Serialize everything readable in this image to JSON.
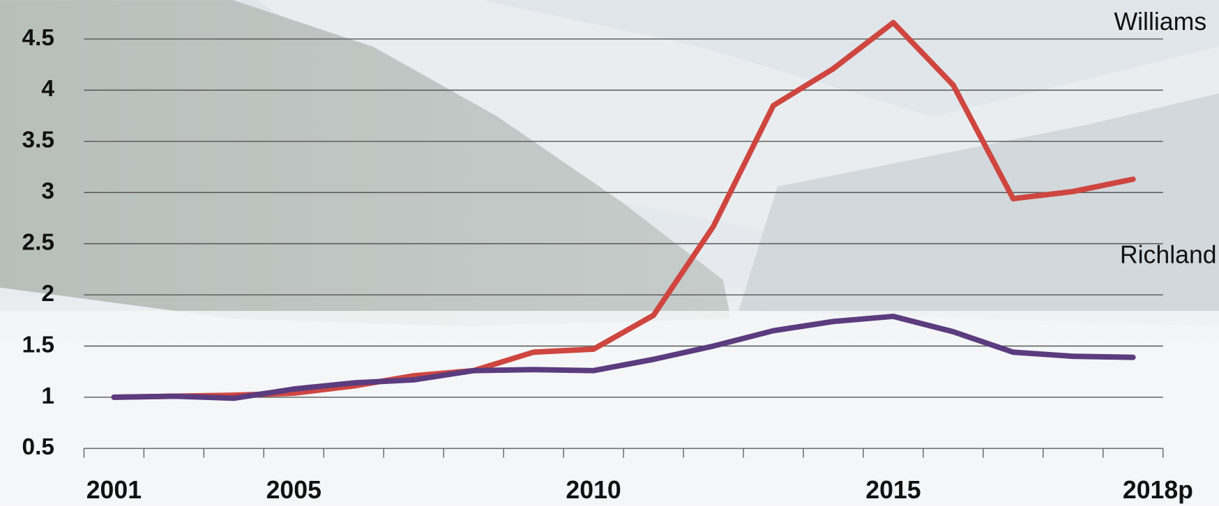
{
  "chart_data": {
    "type": "line",
    "categories": [
      "2001",
      null,
      null,
      "2005",
      null,
      null,
      null,
      null,
      "2010",
      null,
      null,
      null,
      null,
      "2015",
      null,
      null,
      null,
      "2018p"
    ],
    "series": [
      {
        "name": "Williams",
        "color": "#cf4640",
        "values": [
          1.0,
          1.01,
          1.02,
          1.04,
          1.11,
          1.21,
          1.26,
          1.44,
          1.47,
          1.8,
          2.67,
          3.85,
          4.21,
          4.66,
          4.05,
          2.94,
          3.01,
          3.13
        ]
      },
      {
        "name": "Richland",
        "color": "#5b3c7f",
        "values": [
          1.0,
          1.01,
          0.99,
          1.08,
          1.14,
          1.17,
          1.26,
          1.27,
          1.26,
          1.37,
          1.5,
          1.65,
          1.74,
          1.79,
          1.64,
          1.44,
          1.4,
          1.39
        ]
      }
    ],
    "ylim": [
      0.5,
      4.88
    ],
    "yticks": [
      0.5,
      1,
      1.5,
      2,
      2.5,
      3,
      3.5,
      4,
      4.5
    ],
    "grid": true
  }
}
